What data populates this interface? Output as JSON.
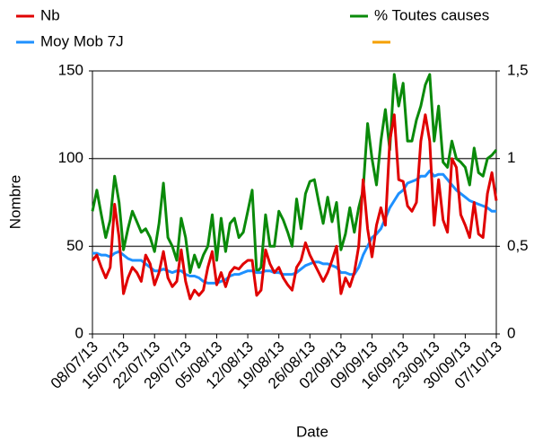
{
  "chart_data": {
    "type": "line",
    "xlabel": "Date",
    "ylabel": "Nombre",
    "categories": [
      "08/07/13",
      null,
      null,
      null,
      null,
      null,
      null,
      "15/07/13",
      null,
      null,
      null,
      null,
      null,
      null,
      "22/07/13",
      null,
      null,
      null,
      null,
      null,
      null,
      "29/07/13",
      null,
      null,
      null,
      null,
      null,
      null,
      "05/08/13",
      null,
      null,
      null,
      null,
      null,
      null,
      "12/08/13",
      null,
      null,
      null,
      null,
      null,
      null,
      "19/08/13",
      null,
      null,
      null,
      null,
      null,
      null,
      "26/08/13",
      null,
      null,
      null,
      null,
      null,
      null,
      "02/09/13",
      null,
      null,
      null,
      null,
      null,
      null,
      "09/09/13",
      null,
      null,
      null,
      null,
      null,
      null,
      "16/09/13",
      null,
      null,
      null,
      null,
      null,
      null,
      "23/09/13",
      null,
      null,
      null,
      null,
      null,
      null,
      "30/09/13",
      null,
      null,
      null,
      null,
      null,
      null,
      "07/10/13"
    ],
    "series": [
      {
        "name": "Nb",
        "color": "#e00000",
        "values": [
          42,
          45,
          38,
          32,
          38,
          74,
          55,
          23,
          32,
          38,
          35,
          30,
          45,
          40,
          28,
          35,
          47,
          32,
          27,
          30,
          48,
          30,
          20,
          25,
          22,
          25,
          38,
          47,
          28,
          35,
          27,
          35,
          38,
          37,
          40,
          42,
          42,
          22,
          25,
          48,
          40,
          35,
          38,
          32,
          28,
          25,
          38,
          42,
          52,
          45,
          40,
          35,
          30,
          35,
          42,
          50,
          23,
          32,
          27,
          35,
          50,
          88,
          60,
          44,
          62,
          72,
          62,
          110,
          125,
          88,
          87,
          73,
          70,
          75,
          110,
          125,
          110,
          62,
          88,
          65,
          58,
          100,
          95,
          68,
          62,
          55,
          75,
          57,
          55,
          80,
          92,
          76
        ]
      },
      {
        "name": "Moy Mob 7J",
        "color": "#1e90ff",
        "values": [
          46,
          46,
          45,
          45,
          44,
          46,
          47,
          45,
          43,
          42,
          42,
          42,
          40,
          38,
          36,
          36,
          37,
          36,
          35,
          36,
          36,
          34,
          33,
          33,
          32,
          30,
          29,
          29,
          29,
          30,
          31,
          33,
          34,
          34,
          35,
          36,
          36,
          35,
          35,
          36,
          36,
          35,
          35,
          34,
          34,
          34,
          35,
          37,
          39,
          40,
          41,
          41,
          40,
          40,
          39,
          38,
          35,
          35,
          34,
          34,
          38,
          45,
          50,
          55,
          57,
          60,
          66,
          72,
          76,
          80,
          82,
          86,
          87,
          88,
          90,
          90,
          93,
          90,
          91,
          91,
          88,
          85,
          82,
          80,
          78,
          76,
          75,
          74,
          73,
          72,
          70,
          70
        ]
      },
      {
        "name": "% Toutes causes",
        "color": "#0a8a0a",
        "axis": "y2",
        "values": [
          0.7,
          0.82,
          0.68,
          0.55,
          0.65,
          0.9,
          0.75,
          0.48,
          0.6,
          0.7,
          0.64,
          0.58,
          0.6,
          0.55,
          0.47,
          0.63,
          0.86,
          0.55,
          0.5,
          0.42,
          0.66,
          0.55,
          0.35,
          0.45,
          0.38,
          0.45,
          0.5,
          0.68,
          0.42,
          0.66,
          0.47,
          0.63,
          0.66,
          0.55,
          0.58,
          0.7,
          0.82,
          0.35,
          0.38,
          0.68,
          0.5,
          0.5,
          0.7,
          0.65,
          0.58,
          0.5,
          0.77,
          0.6,
          0.8,
          0.87,
          0.88,
          0.75,
          0.63,
          0.78,
          0.64,
          0.75,
          0.48,
          0.57,
          0.72,
          0.58,
          0.72,
          0.82,
          1.2,
          1.0,
          0.85,
          1.1,
          1.28,
          1.05,
          1.48,
          1.3,
          1.43,
          1.1,
          1.1,
          1.22,
          1.3,
          1.42,
          1.48,
          1.1,
          1.3,
          0.98,
          0.95,
          1.1,
          1.0,
          0.98,
          0.95,
          0.85,
          1.06,
          0.92,
          0.9,
          1.0,
          1.02,
          1.05
        ]
      }
    ],
    "ylim": [
      0,
      150
    ],
    "yticks": [
      0,
      50,
      100,
      150
    ],
    "y2lim": [
      0,
      1.5
    ],
    "y2ticks": [
      0,
      {
        "value": 0.5,
        "label": "0,5"
      },
      1,
      {
        "value": 1.5,
        "label": "1,5"
      }
    ],
    "grid": true
  }
}
